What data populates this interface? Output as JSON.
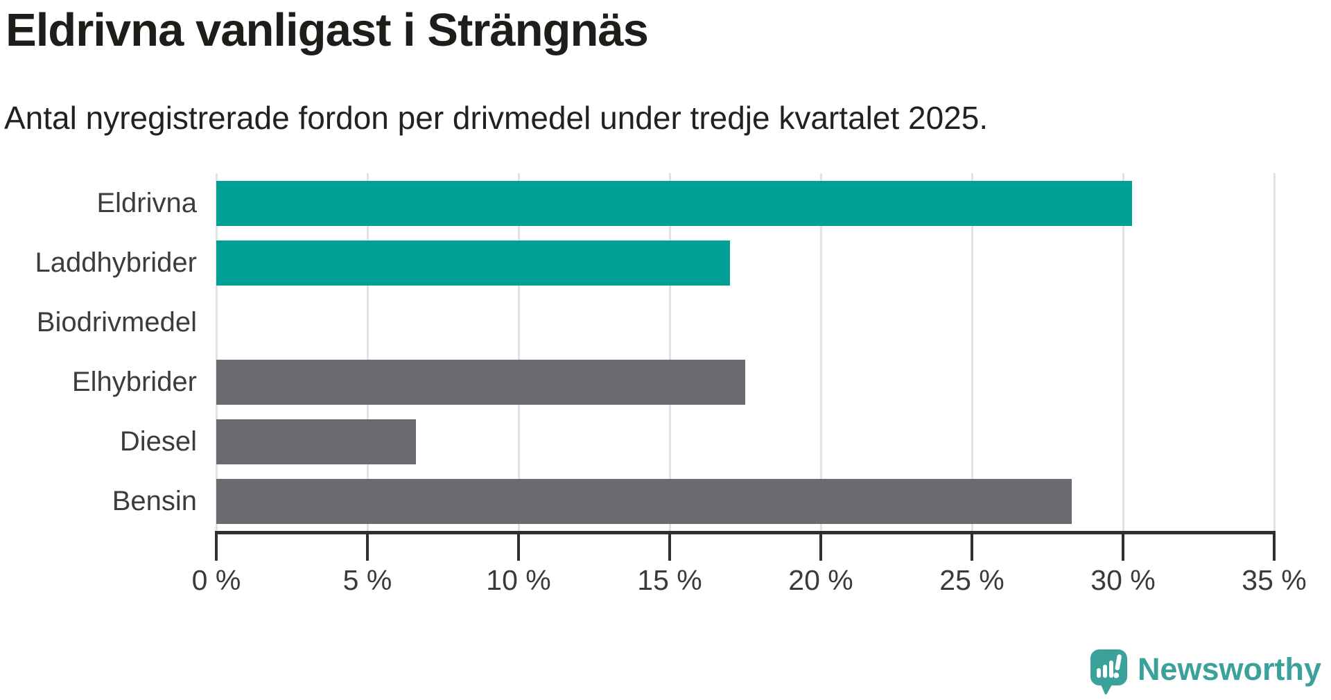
{
  "header": {
    "title": "Eldrivna vanligast i Strängnäs",
    "subtitle": "Antal nyregistrerade fordon per drivmedel under tredje kvartalet 2025."
  },
  "chart_data": {
    "type": "bar",
    "orientation": "horizontal",
    "title": "Eldrivna vanligast i Strängnäs",
    "subtitle": "Antal nyregistrerade fordon per drivmedel under tredje kvartalet 2025.",
    "categories": [
      "Eldrivna",
      "Laddhybrider",
      "Biodrivmedel",
      "Elhybrider",
      "Diesel",
      "Bensin"
    ],
    "values": [
      30.3,
      17.0,
      0,
      17.5,
      6.6,
      28.3
    ],
    "unit": "%",
    "bar_colors": [
      "#00a096",
      "#00a096",
      "#6c6a71",
      "#6c6a71",
      "#6c6a71",
      "#6c6a71"
    ],
    "highlight_color": "#00a096",
    "default_color": "#6c6a71",
    "xlabel": "",
    "ylabel": "",
    "xlim": [
      0,
      35
    ],
    "x_ticks": [
      0,
      5,
      10,
      15,
      20,
      25,
      30,
      35
    ],
    "x_tick_labels": [
      "0 %",
      "5 %",
      "10 %",
      "15 %",
      "20 %",
      "25 %",
      "30 %",
      "35 %"
    ],
    "grid": "vertical-gridlines-on",
    "legend": "none"
  },
  "branding": {
    "logo_text": "Newsworthy",
    "logo_color": "#3ba19b",
    "logo_icon": "newsworthy-pin-barchart-icon"
  }
}
